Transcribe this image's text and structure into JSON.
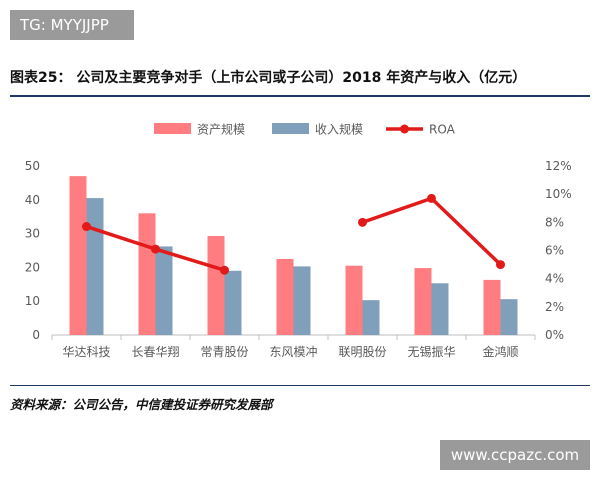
{
  "badge": {
    "text": "TG: MYYJJPP"
  },
  "figure": {
    "title": "图表25：  公司及主要竞争对手（上市公司或子公司）2018 年资产与收入（亿元）"
  },
  "source": {
    "text": "资料来源：公司公告，中信建投证券研究发展部"
  },
  "watermark": {
    "text": "www.ccpazc.com"
  },
  "colors": {
    "asset": "#ff7c80",
    "revenue": "#7f9fba",
    "roa": "#e21a1a",
    "axis": "#bfbfbf"
  },
  "chart_data": {
    "type": "bar",
    "categories": [
      "华达科技",
      "长春华翔",
      "常青股份",
      "东风模冲",
      "联明股份",
      "无锡振华",
      "金鸿顺"
    ],
    "series": [
      {
        "name": "资产规模",
        "type": "bar",
        "axis": "left",
        "values": [
          47,
          36,
          29.3,
          22.5,
          20.5,
          19.8,
          16.3
        ]
      },
      {
        "name": "收入规模",
        "type": "bar",
        "axis": "left",
        "values": [
          40.5,
          26.2,
          19,
          20.3,
          10.3,
          15.3,
          10.6
        ]
      },
      {
        "name": "ROA",
        "type": "line",
        "axis": "right",
        "values": [
          0.077,
          0.061,
          0.046,
          null,
          0.08,
          0.097,
          0.05
        ]
      }
    ],
    "y_left": {
      "lim": [
        0,
        50
      ],
      "ticks": [
        "0",
        "10",
        "20",
        "30",
        "40",
        "50"
      ]
    },
    "y_right": {
      "lim": [
        0,
        0.12
      ],
      "ticks": [
        "0%",
        "2%",
        "4%",
        "6%",
        "8%",
        "10%",
        "12%"
      ]
    },
    "legend": {
      "position": "top",
      "labels": [
        "资产规模",
        "收入规模",
        "ROA"
      ]
    },
    "grid": false
  }
}
